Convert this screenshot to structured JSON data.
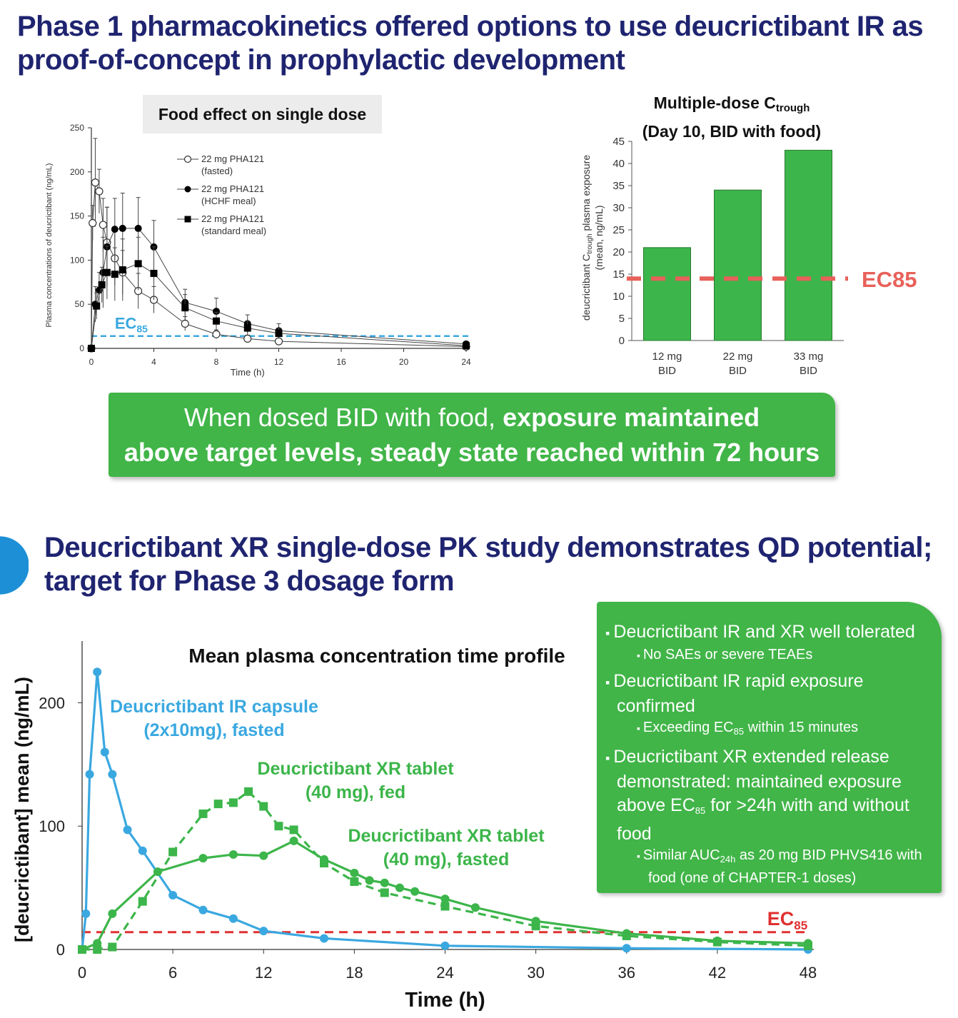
{
  "slide1": {
    "title": "Phase 1 pharmacokinetics offered options to use deucrictibant IR as proof-of-concept in prophylactic development",
    "banner_normal": "When dosed BID with food, ",
    "banner_bold_1": "exposure maintained",
    "banner_bold_2": "above target levels, steady state reached within 72 hours"
  },
  "slide2": {
    "title": "Deucrictibant XR single-dose PK study demonstrates QD potential; target for Phase 3 dosage form",
    "panel": {
      "b1": "Deucrictibant IR and XR well tolerated",
      "b1_sub": "No SAEs or severe TEAEs",
      "b2": "Deucrictibant IR rapid exposure confirmed",
      "b2_sub_pre": "Exceeding EC",
      "b2_sub_sub": "85",
      "b2_sub_post": " within 15 minutes",
      "b3_pre": "Deucrictibant XR extended release demonstrated: maintained exposure above EC",
      "b3_sub": "85",
      "b3_post": " for >24h with and without food",
      "b3_sub_pre": "Similar AUC",
      "b3_sub_sub": "24h",
      "b3_sub_post": " as 20 mg BID PHVS416 with food (one of CHAPTER-1 doses)"
    }
  },
  "chart_data": [
    {
      "id": "food-effect",
      "type": "line",
      "title": "Food effect on single dose",
      "xlabel": "Time (h)",
      "ylabel": "Plasma concentrations of deucrictibant (ng/mL)",
      "xlim": [
        0,
        24
      ],
      "ylim": [
        0,
        250
      ],
      "xticks": [
        0,
        4,
        8,
        12,
        16,
        20,
        24
      ],
      "yticks": [
        0,
        50,
        100,
        150,
        200,
        250
      ],
      "ec85": 14,
      "ec85_label": "EC",
      "ec85_sub": "85",
      "legend_position": "top-center",
      "series": [
        {
          "name": "22 mg PHA121 (fasted)",
          "legend_l1": "22 mg PHA121",
          "legend_l2": "(fasted)",
          "marker": "open-circle",
          "points": [
            [
              0,
              0
            ],
            [
              0.08,
              142
            ],
            [
              0.25,
              188
            ],
            [
              0.5,
              178
            ],
            [
              0.75,
              140
            ],
            [
              1,
              120
            ],
            [
              1.5,
              102
            ],
            [
              2,
              86
            ],
            [
              3,
              65
            ],
            [
              4,
              55
            ],
            [
              6,
              28
            ],
            [
              8,
              16
            ],
            [
              10,
              11
            ],
            [
              12,
              8
            ],
            [
              24,
              2
            ]
          ],
          "err": [
            0,
            20,
            50,
            25,
            30,
            40,
            30,
            25,
            20,
            15,
            8,
            5,
            4,
            3,
            1
          ]
        },
        {
          "name": "22 mg PHA121 (HCHF meal)",
          "legend_l1": "22 mg PHA121",
          "legend_l2": "(HCHF meal)",
          "marker": "filled-circle",
          "points": [
            [
              0,
              0
            ],
            [
              0.25,
              50
            ],
            [
              0.5,
              66
            ],
            [
              0.75,
              86
            ],
            [
              1,
              115
            ],
            [
              1.5,
              135
            ],
            [
              2,
              136
            ],
            [
              3,
              136
            ],
            [
              4,
              115
            ],
            [
              6,
              52
            ],
            [
              8,
              42
            ],
            [
              10,
              28
            ],
            [
              12,
              20
            ],
            [
              24,
              5
            ]
          ],
          "err": [
            0,
            20,
            20,
            40,
            45,
            35,
            40,
            35,
            30,
            15,
            15,
            10,
            8,
            2
          ]
        },
        {
          "name": "22 mg PHA121 (standard meal)",
          "legend_l1": "22 mg PHA121",
          "legend_l2": "(standard meal)",
          "marker": "filled-square",
          "points": [
            [
              0,
              0
            ],
            [
              0.33,
              48
            ],
            [
              0.67,
              72
            ],
            [
              1,
              86
            ],
            [
              1.5,
              84
            ],
            [
              2,
              89
            ],
            [
              3,
              96
            ],
            [
              4,
              85
            ],
            [
              6,
              46
            ],
            [
              8,
              31
            ],
            [
              10,
              23
            ],
            [
              12,
              17
            ],
            [
              24,
              3
            ]
          ],
          "err": [
            0,
            15,
            20,
            30,
            30,
            35,
            30,
            30,
            15,
            10,
            8,
            6,
            2
          ]
        }
      ]
    },
    {
      "id": "multiple-dose",
      "type": "bar",
      "title_pre": "Multiple-dose C",
      "title_sub": "trough",
      "title_line2": "(Day 10, BID with food)",
      "ylabel_pre": "deucrictibant C",
      "ylabel_sub": "trough",
      "ylabel_post": " plasma exposure",
      "ylabel_line2": "(mean, ng/mL)",
      "categories": [
        [
          "12 mg",
          "BID"
        ],
        [
          "22 mg",
          "BID"
        ],
        [
          "33 mg",
          "BID"
        ]
      ],
      "values": [
        21,
        34,
        43
      ],
      "ylim": [
        0,
        45
      ],
      "yticks": [
        0,
        5,
        10,
        15,
        20,
        25,
        30,
        35,
        40,
        45
      ],
      "ec85": 14,
      "ec85_label": "EC85",
      "bar_color": "#3cb54a",
      "ec85_color": "#e8615a"
    },
    {
      "id": "xr-profile",
      "type": "line",
      "title": "Mean plasma concentration time profile",
      "xlabel": "Time (h)",
      "ylabel": "[deucrictibant] mean (ng/mL)",
      "xlim": [
        0,
        48
      ],
      "ylim": [
        0,
        250
      ],
      "xticks": [
        0,
        6,
        12,
        18,
        24,
        30,
        36,
        42,
        48
      ],
      "yticks": [
        0,
        100,
        200
      ],
      "ec85": 14,
      "ec85_label": "EC",
      "ec85_sub": "85",
      "series": [
        {
          "name": "Deucrictibant IR capsule (2x10mg), fasted",
          "label_l1": "Deucrictibant IR capsule",
          "label_l2": "(2x10mg), fasted",
          "color": "#3aa8e0",
          "style": "solid",
          "marker": "circle",
          "points": [
            [
              0,
              0
            ],
            [
              0.25,
              29
            ],
            [
              0.5,
              142
            ],
            [
              1,
              225
            ],
            [
              1.5,
              160
            ],
            [
              2,
              142
            ],
            [
              3,
              97
            ],
            [
              4,
              80
            ],
            [
              6,
              44
            ],
            [
              8,
              32
            ],
            [
              10,
              25
            ],
            [
              12,
              15
            ],
            [
              16,
              9
            ],
            [
              24,
              3
            ],
            [
              36,
              1
            ],
            [
              48,
              0
            ]
          ]
        },
        {
          "name": "Deucrictibant XR tablet (40 mg), fed",
          "label_l1": "Deucrictibant XR tablet",
          "label_l2": "(40 mg), fed",
          "color": "#3cb54a",
          "style": "dashed",
          "marker": "square",
          "points": [
            [
              0,
              0
            ],
            [
              1,
              0
            ],
            [
              2,
              2
            ],
            [
              4,
              39
            ],
            [
              6,
              79
            ],
            [
              8,
              110
            ],
            [
              9,
              118
            ],
            [
              10,
              119
            ],
            [
              11,
              128
            ],
            [
              12,
              116
            ],
            [
              13,
              100
            ],
            [
              14,
              97
            ],
            [
              16,
              70
            ],
            [
              18,
              55
            ],
            [
              20,
              46
            ],
            [
              24,
              35
            ],
            [
              30,
              19
            ],
            [
              36,
              11
            ],
            [
              42,
              6
            ],
            [
              48,
              3
            ]
          ]
        },
        {
          "name": "Deucrictibant XR tablet (40 mg), fasted",
          "label_l1": "Deucrictibant XR tablet",
          "label_l2": "(40 mg), fasted",
          "color": "#3cb54a",
          "style": "solid",
          "marker": "circle",
          "points": [
            [
              0,
              0
            ],
            [
              1,
              5
            ],
            [
              2,
              29
            ],
            [
              5,
              63
            ],
            [
              8,
              74
            ],
            [
              10,
              77
            ],
            [
              12,
              76
            ],
            [
              14,
              88
            ],
            [
              16,
              73
            ],
            [
              18,
              62
            ],
            [
              19,
              56
            ],
            [
              20,
              54
            ],
            [
              21,
              50
            ],
            [
              22,
              47
            ],
            [
              24,
              41
            ],
            [
              26,
              34
            ],
            [
              30,
              23
            ],
            [
              36,
              13
            ],
            [
              42,
              7
            ],
            [
              48,
              5
            ]
          ]
        }
      ]
    }
  ]
}
